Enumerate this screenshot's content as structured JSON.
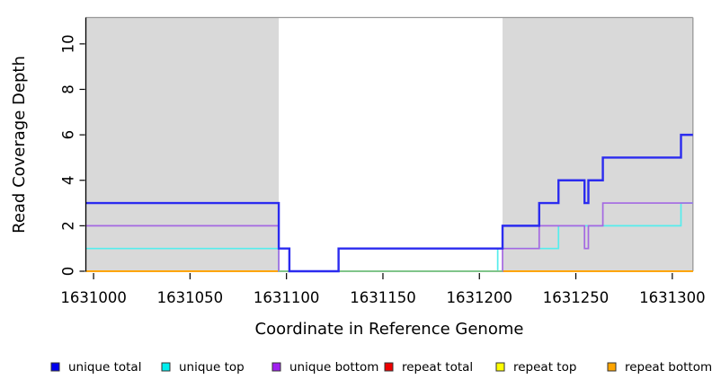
{
  "chart_data": {
    "type": "line",
    "subtype": "step",
    "title": "",
    "xlabel": "Coordinate in Reference Genome",
    "ylabel": "Read Coverage Depth",
    "xlim": [
      1630996,
      1631310.7
    ],
    "ylim": [
      0,
      11.16
    ],
    "x_ticks": [
      1631000,
      1631050,
      1631100,
      1631150,
      1631200,
      1631250,
      1631300
    ],
    "y_ticks": [
      0,
      2,
      4,
      6,
      8,
      10
    ],
    "grid": false,
    "legend_position": "bottom",
    "plot_border_color": "#999999",
    "axis_color": "#000000",
    "repeat_region_color": "#d9d9d9",
    "repeat_regions": [
      {
        "start": 1630996,
        "end": 1631096
      },
      {
        "start": 1631212,
        "end": 1631310.7
      }
    ],
    "series": [
      {
        "name": "repeat total",
        "color": "#ee0000",
        "stroke_width": 1.4,
        "in_legend": true,
        "parts": [
          {
            "points": [
              [
                1630996,
                0
              ]
            ],
            "end": 1631096
          },
          {
            "points": [
              [
                1631212,
                0
              ]
            ],
            "end": 1631310.7
          }
        ]
      },
      {
        "name": "repeat top",
        "color": "#ffff00",
        "stroke_width": 1.4,
        "in_legend": true,
        "parts": [
          {
            "points": [
              [
                1630996,
                0
              ]
            ],
            "end": 1631096
          },
          {
            "points": [
              [
                1631212,
                0
              ]
            ],
            "end": 1631310.7
          }
        ]
      },
      {
        "name": "repeat bottom",
        "color": "#ffa500",
        "stroke_width": 2,
        "in_legend": true,
        "parts": [
          {
            "points": [
              [
                1630996,
                0
              ]
            ],
            "end": 1631096
          },
          {
            "points": [
              [
                1631212,
                0
              ]
            ],
            "end": 1631310.7
          }
        ]
      },
      {
        "name": "unique top",
        "color": "#55eded",
        "stroke_width": 1.7,
        "in_legend": true,
        "parts": [
          {
            "points": [
              [
                1630996,
                1
              ],
              [
                1631096,
                0
              ],
              [
                1631209.5,
                1
              ],
              [
                1631241,
                2
              ],
              [
                1631304.5,
                3
              ]
            ],
            "end": 1631310.7
          }
        ]
      },
      {
        "name": "unique bottom",
        "color": "#a468e2",
        "stroke_width": 1.7,
        "in_legend": true,
        "parts": [
          {
            "points": [
              [
                1630996,
                2
              ],
              [
                1631096,
                0
              ],
              [
                1631212,
                1
              ],
              [
                1631231,
                2
              ],
              [
                1631254.5,
                1
              ],
              [
                1631256.5,
                2
              ],
              [
                1631264,
                3
              ]
            ],
            "end": 1631310.7
          }
        ]
      },
      {
        "name": "zero baseline",
        "color": "#7ccd7c",
        "stroke_width": 1.7,
        "in_legend": false,
        "parts": [
          {
            "points": [
              [
                1631096,
                0
              ]
            ],
            "end": 1631212
          }
        ]
      },
      {
        "name": "unique total",
        "color": "#2b2bef",
        "stroke_width": 2.4,
        "in_legend": true,
        "parts": [
          {
            "points": [
              [
                1630996,
                3
              ],
              [
                1631096,
                1
              ],
              [
                1631101.5,
                0
              ],
              [
                1631127,
                1
              ],
              [
                1631212,
                2
              ],
              [
                1631231,
                3
              ],
              [
                1631241,
                4
              ],
              [
                1631254.5,
                3
              ],
              [
                1631256.5,
                4
              ],
              [
                1631264,
                5
              ],
              [
                1631304.5,
                6
              ]
            ],
            "end": 1631310.7
          }
        ]
      }
    ],
    "legend": [
      {
        "label": "unique total",
        "color": "#0000ee"
      },
      {
        "label": "unique top",
        "color": "#00eeee"
      },
      {
        "label": "unique bottom",
        "color": "#a020f0"
      },
      {
        "label": "repeat total",
        "color": "#ee0000"
      },
      {
        "label": "repeat top",
        "color": "#ffff00"
      },
      {
        "label": "repeat bottom",
        "color": "#ffa500"
      }
    ]
  },
  "layout_note": ""
}
